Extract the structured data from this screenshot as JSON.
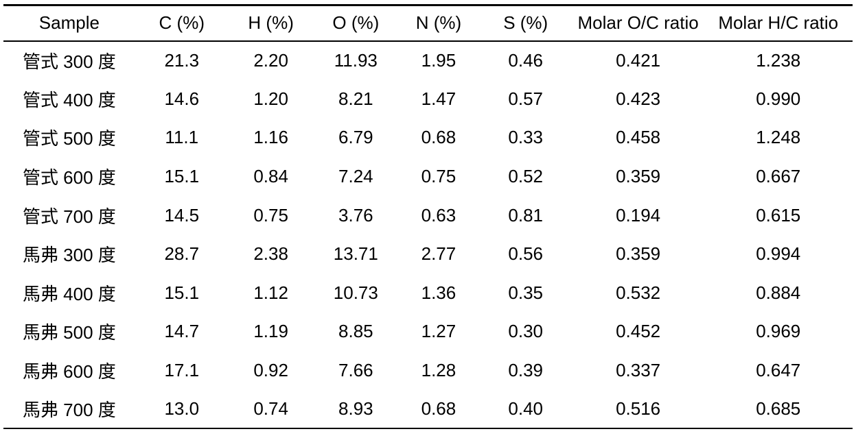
{
  "table": {
    "columns": [
      "Sample",
      "C (%)",
      "H (%)",
      "O (%)",
      "N (%)",
      "S (%)",
      "Molar O/C ratio",
      "Molar H/C ratio"
    ],
    "column_keys": [
      "sample",
      "c-percent",
      "h-percent",
      "o-percent",
      "n-percent",
      "s-percent",
      "molar-oc-ratio",
      "molar-hc-ratio"
    ],
    "rows": [
      [
        "管式 300 度",
        "21.3",
        "2.20",
        "11.93",
        "1.95",
        "0.46",
        "0.421",
        "1.238"
      ],
      [
        "管式 400 度",
        "14.6",
        "1.20",
        "8.21",
        "1.47",
        "0.57",
        "0.423",
        "0.990"
      ],
      [
        "管式 500 度",
        "11.1",
        "1.16",
        "6.79",
        "0.68",
        "0.33",
        "0.458",
        "1.248"
      ],
      [
        "管式 600 度",
        "15.1",
        "0.84",
        "7.24",
        "0.75",
        "0.52",
        "0.359",
        "0.667"
      ],
      [
        "管式 700 度",
        "14.5",
        "0.75",
        "3.76",
        "0.63",
        "0.81",
        "0.194",
        "0.615"
      ],
      [
        "馬弗 300 度",
        "28.7",
        "2.38",
        "13.71",
        "2.77",
        "0.56",
        "0.359",
        "0.994"
      ],
      [
        "馬弗 400 度",
        "15.1",
        "1.12",
        "10.73",
        "1.36",
        "0.35",
        "0.532",
        "0.884"
      ],
      [
        "馬弗 500 度",
        "14.7",
        "1.19",
        "8.85",
        "1.27",
        "0.30",
        "0.452",
        "0.969"
      ],
      [
        "馬弗 600 度",
        "17.1",
        "0.92",
        "7.66",
        "1.28",
        "0.39",
        "0.337",
        "0.647"
      ],
      [
        "馬弗 700 度",
        "13.0",
        "0.74",
        "8.93",
        "0.68",
        "0.40",
        "0.516",
        "0.685"
      ]
    ]
  },
  "colors": {
    "text": "#000000",
    "background": "#ffffff",
    "rule": "#000000"
  },
  "chart_data": {
    "type": "table",
    "title": "",
    "columns": [
      "Sample",
      "C (%)",
      "H (%)",
      "O (%)",
      "N (%)",
      "S (%)",
      "Molar O/C ratio",
      "Molar H/C ratio"
    ],
    "rows": [
      {
        "sample": "管式 300 度",
        "c": 21.3,
        "h": 2.2,
        "o": 11.93,
        "n": 1.95,
        "s": 0.46,
        "molar_oc": 0.421,
        "molar_hc": 1.238
      },
      {
        "sample": "管式 400 度",
        "c": 14.6,
        "h": 1.2,
        "o": 8.21,
        "n": 1.47,
        "s": 0.57,
        "molar_oc": 0.423,
        "molar_hc": 0.99
      },
      {
        "sample": "管式 500 度",
        "c": 11.1,
        "h": 1.16,
        "o": 6.79,
        "n": 0.68,
        "s": 0.33,
        "molar_oc": 0.458,
        "molar_hc": 1.248
      },
      {
        "sample": "管式 600 度",
        "c": 15.1,
        "h": 0.84,
        "o": 7.24,
        "n": 0.75,
        "s": 0.52,
        "molar_oc": 0.359,
        "molar_hc": 0.667
      },
      {
        "sample": "管式 700 度",
        "c": 14.5,
        "h": 0.75,
        "o": 3.76,
        "n": 0.63,
        "s": 0.81,
        "molar_oc": 0.194,
        "molar_hc": 0.615
      },
      {
        "sample": "馬弗 300 度",
        "c": 28.7,
        "h": 2.38,
        "o": 13.71,
        "n": 2.77,
        "s": 0.56,
        "molar_oc": 0.359,
        "molar_hc": 0.994
      },
      {
        "sample": "馬弗 400 度",
        "c": 15.1,
        "h": 1.12,
        "o": 10.73,
        "n": 1.36,
        "s": 0.35,
        "molar_oc": 0.532,
        "molar_hc": 0.884
      },
      {
        "sample": "馬弗 500 度",
        "c": 14.7,
        "h": 1.19,
        "o": 8.85,
        "n": 1.27,
        "s": 0.3,
        "molar_oc": 0.452,
        "molar_hc": 0.969
      },
      {
        "sample": "馬弗 600 度",
        "c": 17.1,
        "h": 0.92,
        "o": 7.66,
        "n": 1.28,
        "s": 0.39,
        "molar_oc": 0.337,
        "molar_hc": 0.647
      },
      {
        "sample": "馬弗 700 度",
        "c": 13.0,
        "h": 0.74,
        "o": 8.93,
        "n": 0.68,
        "s": 0.4,
        "molar_oc": 0.516,
        "molar_hc": 0.685
      }
    ]
  }
}
